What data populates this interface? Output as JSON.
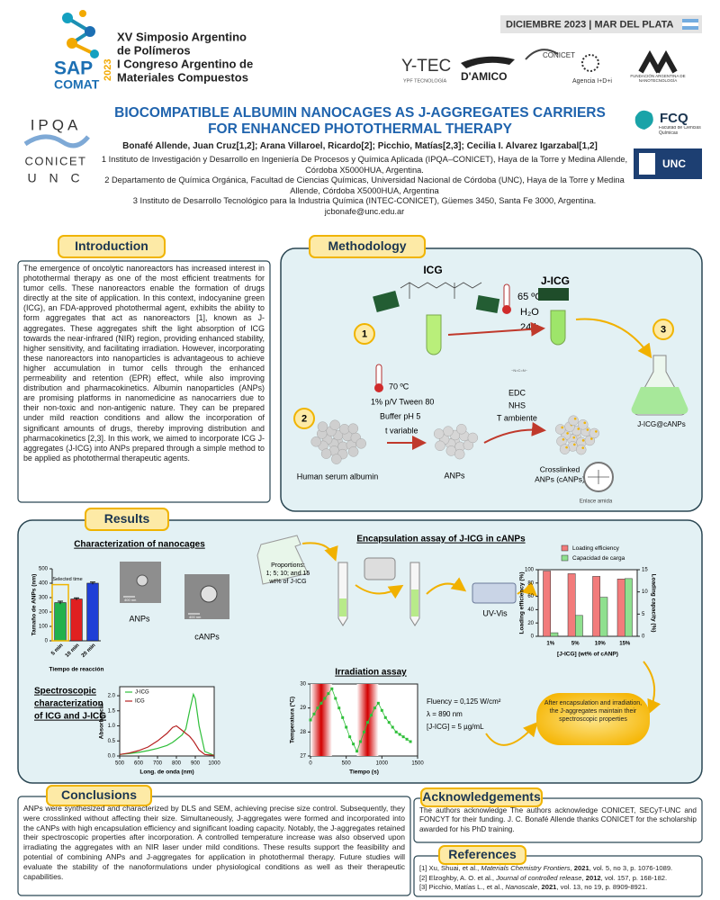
{
  "header": {
    "logo": {
      "sap": "SAP",
      "comat": "COMAT",
      "year": "2023"
    },
    "event_lines": [
      "XV Simposio Argentino",
      "de Polímeros",
      "I Congreso Argentino de",
      "Materiales Compuestos"
    ],
    "date": "DICIEMBRE 2023 | MAR DEL PLATA",
    "sponsors": {
      "ytec": "Y-TEC",
      "ytec_sub": "YPF TECNOLOGÍA",
      "damico": "D'AMICO",
      "conicet": "CONICET",
      "agencia": "Agencia I+D+i",
      "nano": "FUNDACIÓN ARGENTINA DE NANOTECNOLOGÍA"
    }
  },
  "title": "BIOCOMPATIBLE ALBUMIN NANOCAGES AS J-AGGREGATES CARRIERS FOR ENHANCED PHOTOTHERMAL THERAPY",
  "authors": "Bonafé Allende, Juan Cruz[1,2]; Arana Villaroel, Ricardo[2]; Picchio, Matías[2,3]; Cecilia I. Alvarez Igarzabal[1,2]",
  "affiliations": [
    "1 Instituto de Investigación y Desarrollo en Ingeniería De Procesos y Química Aplicada (IPQA–CONICET), Haya de la Torre y Medina Allende, Córdoba X5000HUA, Argentina.",
    "2 Departamento de Química Orgánica, Facultad de Ciencias Químicas, Universidad Nacional de Córdoba (UNC), Haya de la Torre y Medina Allende, Córdoba X5000HUA, Argentina",
    "3 Instituto de Desarrollo Tecnológico para la Industria Química (INTEC-CONICET), Güemes 3450, Santa Fe 3000, Argentina."
  ],
  "email": "jcbonafe@unc.edu.ar",
  "logos_left": {
    "ipqa": "IPQA",
    "conicet": "CONICET",
    "unc": "U N C"
  },
  "logos_right": {
    "fcq": "FCQ",
    "fcq_sub": "Facultad de Ciencias Químicas",
    "unc": "UNC"
  },
  "introduction": {
    "heading": "Introduction",
    "text": "The emergence of oncolytic nanoreactors has increased interest in photothermal therapy as one of the most efficient treatments for tumor cells. These nanoreactors enable the formation of drugs directly at the site of application. In this context, indocyanine green (ICG), an FDA-approved photothermal agent, exhibits the ability to form aggregates that act as nanoreactors [1], known as J-aggregates. These aggregates shift the light absorption of ICG towards the near-infrared (NIR) region, providing enhanced stability, higher sensitivity, and facilitating irradiation. However, incorporating these nanoreactors into nanoparticles is advantageous to achieve higher accumulation in tumor cells through the enhanced permeability and retention (EPR) effect, while also improving distribution and pharmacokinetics. Albumin nanoparticles (ANPs) are promising platforms in nanomedicine as nanocarriers due to their non-toxic and non-antigenic nature. They can be prepared under mild reaction conditions and allow the incorporation of significant amounts of drugs, thereby improving distribution and pharmacokinetics [2,3]. In this work, we aimed to incorporate ICG J-aggregates (J-ICG) into ANPs prepared through a simple method to be applied as photothermal therapeutic agents."
  },
  "methodology": {
    "heading": "Methodology",
    "steps": [
      "1",
      "2",
      "3"
    ],
    "icg": "ICG",
    "jicg_conditions": [
      "65 ºC",
      "H₂O",
      "24 h"
    ],
    "jicg": "J-ICG",
    "anp_conditions": [
      "70 ºC",
      "1% p/V Tween 80",
      "Buffer pH 5",
      "t variable"
    ],
    "crosslink_conditions": [
      "EDC",
      "NHS",
      "T ambiente"
    ],
    "hsa": "Human serum albumin",
    "anps": "ANPs",
    "canps": [
      "Crosslinked",
      "ANPs (cANPs)"
    ],
    "product": "J-ICG@cANPs",
    "amide": "Enlace amida"
  },
  "results": {
    "heading": "Results",
    "characterization": {
      "title": "Characterization of nanocages",
      "anps": "ANPs",
      "canps": "cANPs",
      "scale_bar": "400 nm",
      "selected_time": "Selected time"
    },
    "size_chart": {
      "type": "bar",
      "y_label": "Tamaño de ANPs (nm)",
      "x_label": "Tiempo de reacción",
      "categories": [
        "5 min",
        "10 min",
        "20 min"
      ],
      "values": [
        265,
        290,
        400
      ],
      "errors": [
        10,
        8,
        8
      ],
      "colors": [
        "#22b14c",
        "#e02020",
        "#1f3fd6"
      ],
      "ylim": [
        0,
        500
      ],
      "yticks": [
        0,
        100,
        200,
        300,
        400,
        500
      ]
    },
    "encapsulation": {
      "title": "Encapsulation assay of J-ICG in cANPs",
      "proportions": [
        "Proportions:",
        "1; 5; 10; and 15",
        "wt% of J-ICG"
      ],
      "uvvis": "UV-Vis"
    },
    "loading_chart": {
      "type": "bar",
      "categories": [
        "1%",
        "5%",
        "10%",
        "15%"
      ],
      "series": [
        {
          "name": "Loading efficiency",
          "color": "#f27b7b",
          "values": [
            98,
            94,
            90,
            86
          ]
        },
        {
          "name": "Capacidad de carga",
          "color": "#8fe08f",
          "axis": "y2",
          "values": [
            0.8,
            4.7,
            8.8,
            13
          ]
        }
      ],
      "ylim": [
        0,
        100
      ],
      "yticks": [
        0,
        20,
        40,
        60,
        80,
        100
      ],
      "y2lim": [
        0,
        15
      ],
      "y2ticks": [
        0,
        5,
        10,
        15
      ],
      "y_label": "Loading efficiency (%)",
      "y2_label": "Loading capacity (%)",
      "x_label": "[J-ICG] (wt% of cANP)"
    },
    "spectroscopic": {
      "title": [
        "Spectroscopic",
        "characterization",
        "of ICG and J-ICG"
      ]
    },
    "spectra_chart": {
      "type": "line",
      "x": [
        500,
        550,
        600,
        650,
        700,
        750,
        780,
        800,
        830,
        850,
        870,
        890,
        900,
        920,
        950,
        1000
      ],
      "series": [
        {
          "name": "J-ICG",
          "color": "#2fbf3a",
          "values": [
            0.05,
            0.08,
            0.12,
            0.18,
            0.25,
            0.35,
            0.45,
            0.55,
            0.7,
            0.9,
            1.5,
            2.05,
            1.9,
            1.0,
            0.15,
            0.02
          ]
        },
        {
          "name": "ICG",
          "color": "#b52020",
          "values": [
            0.05,
            0.1,
            0.18,
            0.3,
            0.5,
            0.75,
            0.95,
            1.0,
            0.85,
            0.75,
            0.65,
            0.5,
            0.4,
            0.2,
            0.05,
            0.02
          ]
        }
      ],
      "xlim": [
        500,
        1000
      ],
      "xticks": [
        500,
        600,
        700,
        800,
        900,
        1000
      ],
      "ylim": [
        0,
        2.3
      ],
      "yticks": [
        {
          "value": 0,
          "label": "0.0"
        },
        {
          "value": 0.5,
          "label": "0.5"
        },
        {
          "value": 1,
          "label": "1.0"
        },
        {
          "value": 1.5,
          "label": "1.5"
        },
        {
          "value": 2,
          "label": "2.0"
        }
      ],
      "y_label": "Absorbancia",
      "x_label": "Long. de onda (nm)"
    },
    "irradiation": {
      "title": "Irradiation assay",
      "conditions": [
        "Fluency = 0,125 W/cm²",
        "λ = 890 nm",
        "[J-ICG] = 5 µg/mL"
      ]
    },
    "irradiation_chart": {
      "type": "line",
      "x": [
        0,
        50,
        100,
        150,
        200,
        250,
        300,
        350,
        400,
        450,
        500,
        550,
        600,
        650,
        700,
        750,
        800,
        850,
        900,
        950,
        1000,
        1050,
        1100,
        1150,
        1200,
        1250,
        1300,
        1350,
        1400
      ],
      "values": [
        28.5,
        28.75,
        29.0,
        29.2,
        29.4,
        29.6,
        29.8,
        29.4,
        29.0,
        28.6,
        28.2,
        27.8,
        27.5,
        27.2,
        27.6,
        28.0,
        28.4,
        28.7,
        29.0,
        29.2,
        28.9,
        28.6,
        28.4,
        28.2,
        28.0,
        27.9,
        27.8,
        27.7,
        27.6
      ],
      "color": "#2fbf3a",
      "irradiation_intervals": [
        [
          0,
          300
        ],
        [
          650,
          950
        ]
      ],
      "xlim": [
        0,
        1500
      ],
      "xticks": [
        0,
        500,
        1000,
        1500
      ],
      "ylim": [
        27,
        30
      ],
      "yticks": [
        27,
        28,
        29,
        30
      ],
      "y_label": "Temperatura (ºC)",
      "x_label": "Tiempo (s)"
    },
    "summary": "After encapsulation and irradiation, the J-aggregates maintain their spectroscopic properties"
  },
  "conclusions": {
    "heading": "Conclusions",
    "text": "ANPs were synthesized and characterized by DLS and SEM, achieving precise size control. Subsequently, they were crosslinked without affecting their size. Simultaneously, J-aggregates were formed and incorporated into the cANPs with high encapsulation efficiency and significant loading capacity. Notably, the J-aggregates retained their spectroscopic properties after incorporation. A controlled temperature increase was also observed upon irradiating the aggregates with an NIR laser under mild conditions. These results support the feasibility and potential of combining ANPs and J-aggregates for application in photothermal therapy. Future studies will evaluate the stability of the nanoformulations under physiological conditions as well as their therapeutic capabilities."
  },
  "acknowledgements": {
    "heading": "Acknowledgements",
    "text": "The authors acknowledge The authors acknowledge CONICET, SECyT-UNC and FONCYT for their funding. J. C. Bonafé Allende thanks CONICET for the scholarship awarded for his PhD training."
  },
  "references": {
    "heading": "References",
    "items": [
      {
        "pre": "[1] Xu, Shuai, et al., ",
        "journal": "Materials Chemistry Frontiers",
        "year": "2021",
        "post": ", vol. 5, no 3, p. 1076-1089."
      },
      {
        "pre": "[2] Elzoghby, A. O. et al., ",
        "journal": "Journal of controlled release",
        "year": "2012",
        "post": ", vol. 157, p. 168-182."
      },
      {
        "pre": "[3] Picchio, Matías L., et al., ",
        "journal": "Nanoscale",
        "year": "2021",
        "post": ", vol. 13, no 19, p. 8909-8921."
      }
    ]
  }
}
